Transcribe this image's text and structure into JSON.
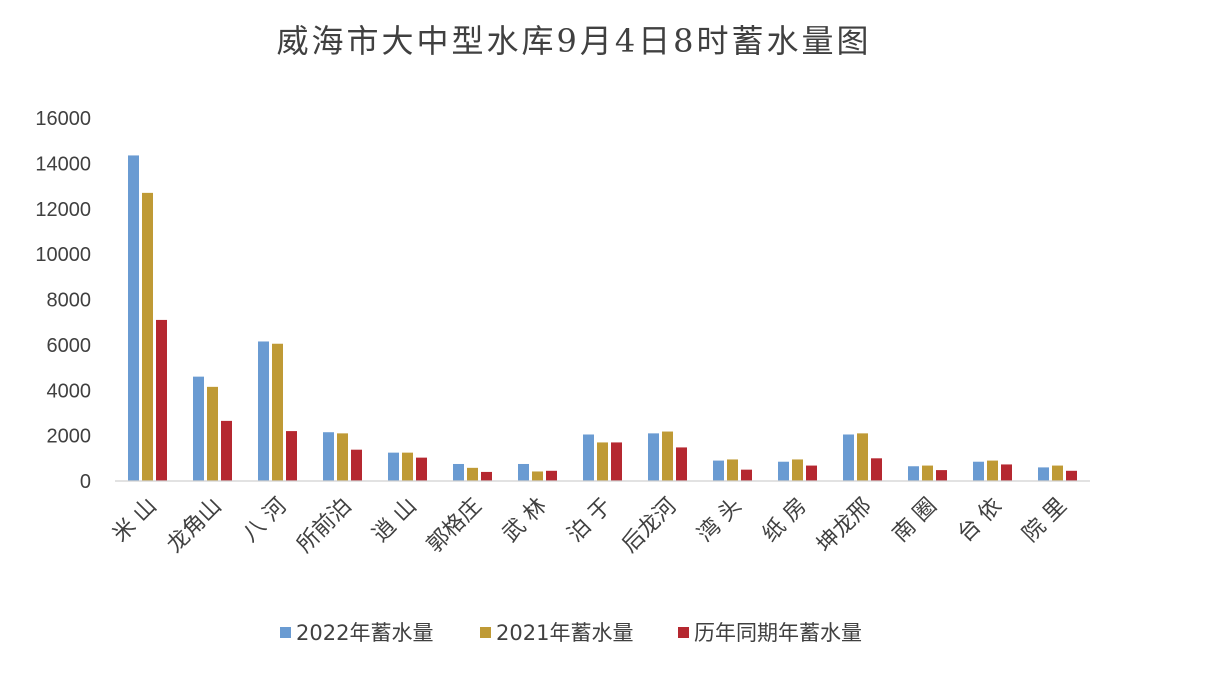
{
  "chart_data": {
    "type": "bar",
    "title": "威海市大中型水库9月4日8时蓄水量图",
    "xlabel": "",
    "ylabel": "",
    "ylim": [
      0,
      16000
    ],
    "yticks": [
      0,
      2000,
      4000,
      6000,
      8000,
      10000,
      12000,
      14000,
      16000
    ],
    "y_tick_labels": [
      "0",
      "2000",
      "4000",
      "6000",
      "8000",
      "10000",
      "12000",
      "14000",
      "16000"
    ],
    "grid": false,
    "legend_position": "bottom",
    "categories": [
      "米 山",
      "龙角山",
      "八 河",
      "所前泊",
      "逍 山",
      "郭格庄",
      "武 林",
      "泊 于",
      "后龙河",
      "湾 头",
      "纸 房",
      "坤龙邢",
      "南 圈",
      "台 依",
      "院 里"
    ],
    "series": [
      {
        "name": "2022年蓄水量",
        "color": "#6a9bd2",
        "values": [
          14350,
          4600,
          6150,
          2150,
          1250,
          750,
          750,
          2050,
          2100,
          900,
          850,
          2050,
          650,
          850,
          600
        ]
      },
      {
        "name": "2021年蓄水量",
        "color": "#bf9a35",
        "values": [
          12700,
          4150,
          6050,
          2100,
          1250,
          580,
          420,
          1700,
          2180,
          950,
          950,
          2100,
          680,
          900,
          680
        ]
      },
      {
        "name": "历年同期年蓄水量",
        "color": "#b52830",
        "values": [
          7100,
          2650,
          2200,
          1380,
          1030,
          400,
          450,
          1700,
          1480,
          500,
          680,
          1000,
          480,
          730,
          450
        ]
      }
    ]
  }
}
